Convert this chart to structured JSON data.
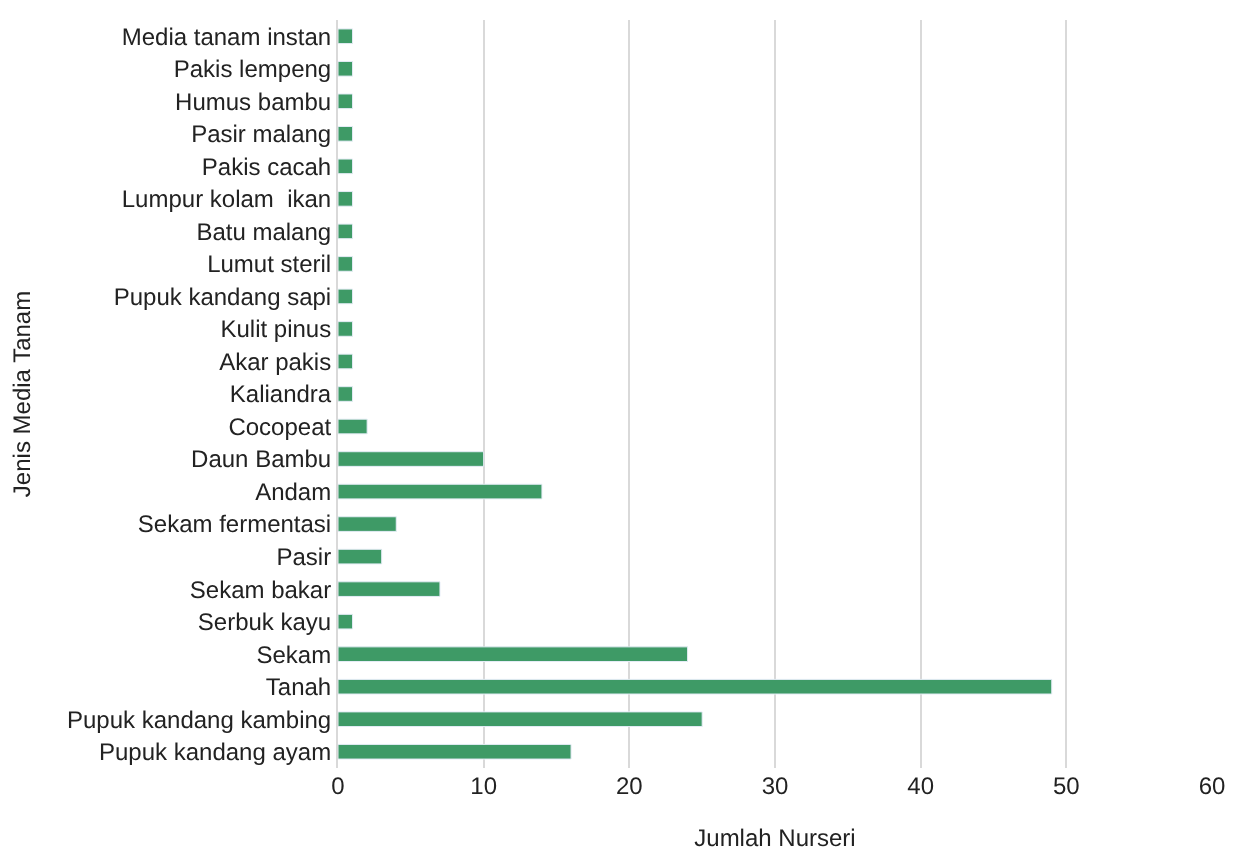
{
  "chart_data": {
    "type": "bar",
    "orientation": "horizontal",
    "xlabel": "Jumlah Nurseri",
    "ylabel": "Jenis Media Tanam",
    "categories": [
      "Media tanam instan",
      "Pakis lempeng",
      "Humus bambu",
      "Pasir malang",
      "Pakis cacah",
      "Lumpur kolam  ikan",
      "Batu malang",
      "Lumut steril",
      "Pupuk kandang sapi",
      "Kulit pinus",
      "Akar pakis",
      "Kaliandra",
      "Cocopeat",
      "Daun Bambu",
      "Andam",
      "Sekam fermentasi",
      "Pasir",
      "Sekam bakar",
      "Serbuk kayu",
      "Sekam",
      "Tanah",
      "Pupuk kandang kambing",
      "Pupuk kandang ayam"
    ],
    "values": [
      1,
      1,
      1,
      1,
      1,
      1,
      1,
      1,
      1,
      1,
      1,
      1,
      2,
      10,
      14,
      4,
      3,
      7,
      1,
      24,
      49,
      25,
      16
    ],
    "color": "#3e9a66",
    "xlim": [
      0,
      60
    ],
    "xticks": [
      0,
      10,
      20,
      30,
      40,
      50,
      60
    ],
    "grid": "x",
    "legend": false
  }
}
